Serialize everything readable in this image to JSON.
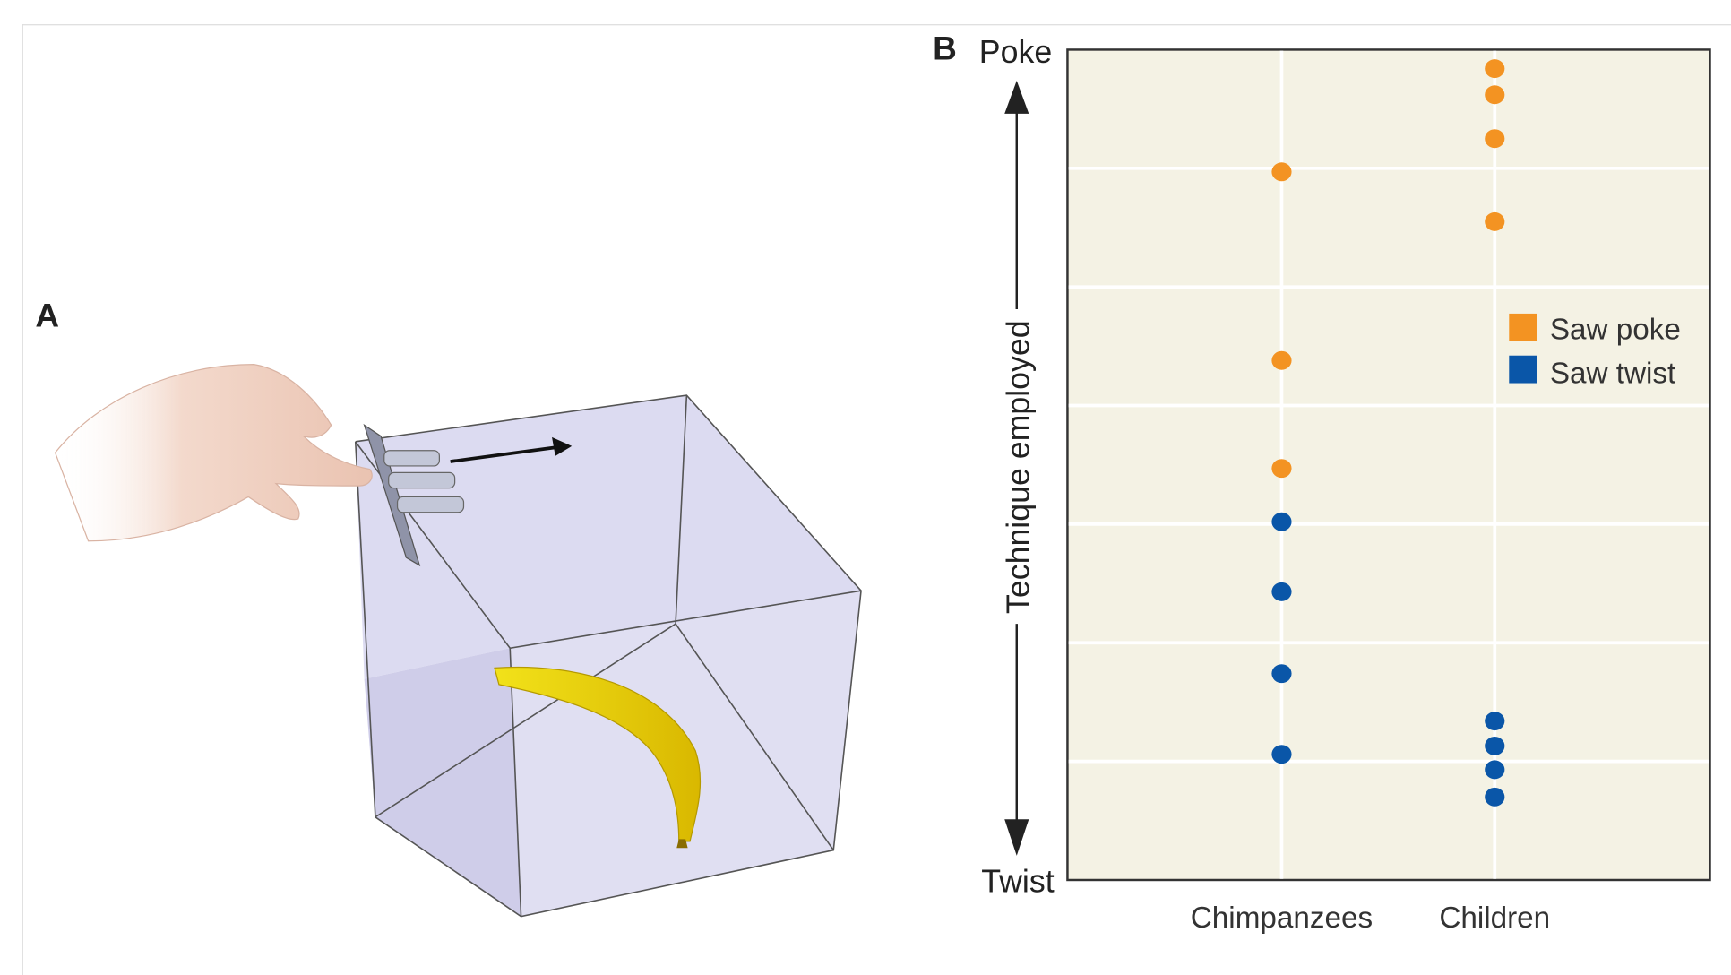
{
  "panel_a": {
    "label": "A"
  },
  "panel_b": {
    "label": "B"
  },
  "chart_data": {
    "type": "scatter",
    "title": "",
    "ylabel": "Technique employed",
    "y_top_label": "Poke",
    "y_bottom_label": "Twist",
    "ylim": [
      0,
      7
    ],
    "grid": true,
    "categories": [
      "Chimpanzees",
      "Children"
    ],
    "legend_placement": "right",
    "series": [
      {
        "name": "Saw poke",
        "color": "#f39322",
        "points": [
          {
            "category": "Chimpanzees",
            "y": 5.97
          },
          {
            "category": "Chimpanzees",
            "y": 4.38
          },
          {
            "category": "Chimpanzees",
            "y": 3.47
          },
          {
            "category": "Children",
            "y": 6.84
          },
          {
            "category": "Children",
            "y": 6.62
          },
          {
            "category": "Children",
            "y": 6.25
          },
          {
            "category": "Children",
            "y": 5.55
          }
        ]
      },
      {
        "name": "Saw twist",
        "color": "#0a56a8",
        "points": [
          {
            "category": "Chimpanzees",
            "y": 3.02
          },
          {
            "category": "Chimpanzees",
            "y": 2.43
          },
          {
            "category": "Chimpanzees",
            "y": 1.74
          },
          {
            "category": "Chimpanzees",
            "y": 1.06
          },
          {
            "category": "Children",
            "y": 1.34
          },
          {
            "category": "Children",
            "y": 1.13
          },
          {
            "category": "Children",
            "y": 0.93
          },
          {
            "category": "Children",
            "y": 0.7
          }
        ]
      }
    ]
  }
}
